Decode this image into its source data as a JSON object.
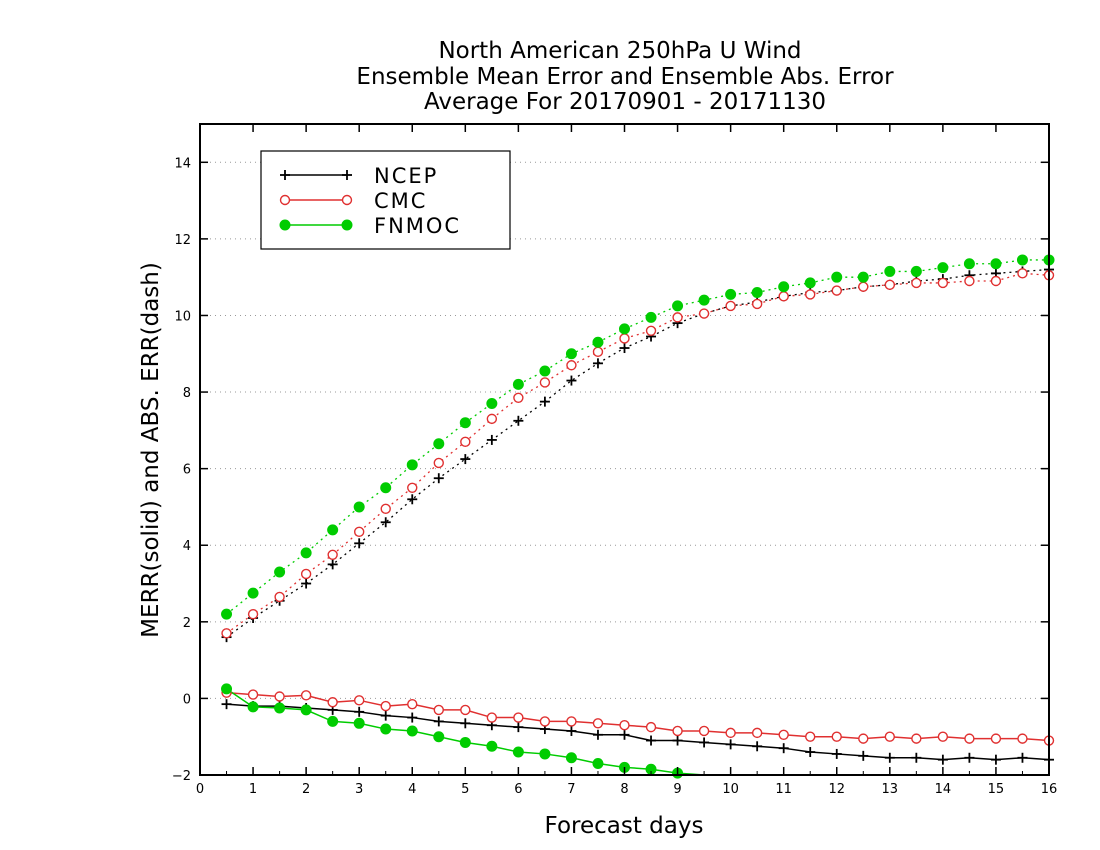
{
  "chart_data": {
    "type": "line",
    "title_lines": [
      "North American 250hPa U Wind",
      "Ensemble Mean Error and Ensemble Abs. Error",
      "Average For 20170901 - 20171130"
    ],
    "xlabel": "Forecast days",
    "ylabel": "MERR(solid) and ABS. ERR(dash)",
    "xlim": [
      0,
      16
    ],
    "ylim": [
      -2,
      15
    ],
    "xticks": [
      0,
      1,
      2,
      3,
      4,
      5,
      6,
      7,
      8,
      9,
      10,
      11,
      12,
      13,
      14,
      15,
      16
    ],
    "yticks": [
      -2,
      0,
      2,
      4,
      6,
      8,
      10,
      12,
      14
    ],
    "grid": "horizontal dotted",
    "legend_position": "top-left",
    "x": [
      0.5,
      1,
      1.5,
      2,
      2.5,
      3,
      3.5,
      4,
      4.5,
      5,
      5.5,
      6,
      6.5,
      7,
      7.5,
      8,
      8.5,
      9,
      9.5,
      10,
      10.5,
      11,
      11.5,
      12,
      12.5,
      13,
      13.5,
      14,
      14.5,
      15,
      15.5,
      16
    ],
    "series": [
      {
        "name": "NCEP",
        "color": "#000000",
        "marker": "plus",
        "abs_err": [
          1.6,
          2.1,
          2.55,
          3.0,
          3.5,
          4.05,
          4.6,
          5.2,
          5.75,
          6.25,
          6.75,
          7.25,
          7.75,
          8.3,
          8.75,
          9.15,
          9.45,
          9.8,
          10.05,
          10.25,
          10.35,
          10.5,
          10.6,
          10.65,
          10.75,
          10.8,
          10.9,
          10.95,
          11.05,
          11.1,
          11.15,
          11.2
        ],
        "mean_err": [
          -0.15,
          -0.2,
          -0.2,
          -0.25,
          -0.3,
          -0.35,
          -0.45,
          -0.5,
          -0.6,
          -0.65,
          -0.7,
          -0.75,
          -0.8,
          -0.85,
          -0.95,
          -0.95,
          -1.1,
          -1.1,
          -1.15,
          -1.2,
          -1.25,
          -1.3,
          -1.4,
          -1.45,
          -1.5,
          -1.55,
          -1.55,
          -1.6,
          -1.55,
          -1.6,
          -1.55,
          -1.6
        ]
      },
      {
        "name": "CMC",
        "color": "#e03030",
        "marker": "open-circle",
        "abs_err": [
          1.7,
          2.2,
          2.65,
          3.25,
          3.75,
          4.35,
          4.95,
          5.5,
          6.15,
          6.7,
          7.3,
          7.85,
          8.25,
          8.7,
          9.05,
          9.4,
          9.6,
          9.95,
          10.05,
          10.25,
          10.3,
          10.5,
          10.55,
          10.65,
          10.75,
          10.8,
          10.85,
          10.85,
          10.9,
          10.9,
          11.1,
          11.05
        ],
        "mean_err": [
          0.15,
          0.1,
          0.05,
          0.08,
          -0.1,
          -0.05,
          -0.2,
          -0.15,
          -0.3,
          -0.3,
          -0.5,
          -0.5,
          -0.6,
          -0.6,
          -0.65,
          -0.7,
          -0.75,
          -0.85,
          -0.85,
          -0.9,
          -0.9,
          -0.95,
          -1.0,
          -1.0,
          -1.05,
          -1.0,
          -1.05,
          -1.0,
          -1.05,
          -1.05,
          -1.05,
          -1.1
        ]
      },
      {
        "name": "FNMOC",
        "color": "#00cc00",
        "marker": "filled-circle",
        "abs_err": [
          2.2,
          2.75,
          3.3,
          3.8,
          4.4,
          5.0,
          5.5,
          6.1,
          6.65,
          7.2,
          7.7,
          8.2,
          8.55,
          9.0,
          9.3,
          9.65,
          9.95,
          10.25,
          10.4,
          10.55,
          10.6,
          10.75,
          10.85,
          11.0,
          11.0,
          11.15,
          11.15,
          11.25,
          11.35,
          11.35,
          11.45,
          11.45
        ],
        "mean_err": [
          0.25,
          -0.22,
          -0.25,
          -0.3,
          -0.6,
          -0.65,
          -0.8,
          -0.85,
          -1.0,
          -1.15,
          -1.25,
          -1.4,
          -1.45,
          -1.55,
          -1.7,
          -1.8,
          -1.85,
          -1.95,
          -2.0
        ]
      }
    ]
  }
}
